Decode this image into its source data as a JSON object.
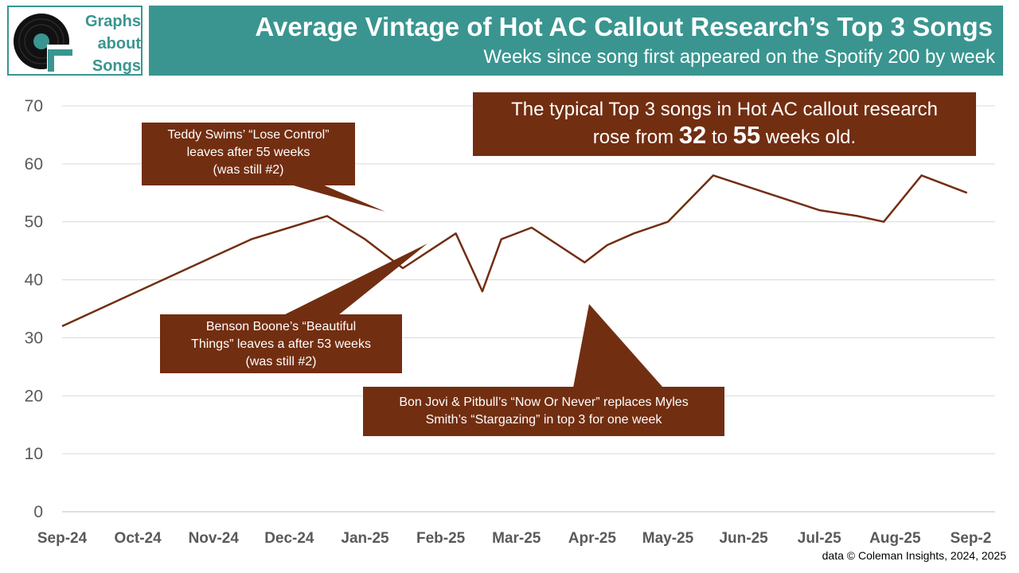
{
  "logo": {
    "lines": [
      "Graphs",
      "about",
      "Songs"
    ]
  },
  "header": {
    "title": "Average Vintage of Hot AC Callout Research’s Top 3 Songs",
    "subtitle": "Weeks since song first appeared on the Spotify 200 by week"
  },
  "annotations": {
    "teddy": [
      "Teddy Swims’ “Lose Control”",
      "leaves after 55 weeks",
      "(was still #2)"
    ],
    "benson": [
      "Benson Boone’s “Beautiful",
      "Things”  leaves a after 53 weeks",
      "(was still #2)"
    ],
    "bonjovi": [
      "Bon Jovi & Pitbull’s “Now Or Never” replaces  Myles",
      "Smith’s “Stargazing” in top 3 for one week"
    ],
    "main": {
      "line1": "The typical Top 3 songs in Hot AC callout research",
      "pre": "rose from ",
      "from": "32",
      "mid": " to ",
      "to": "55",
      "post": " weeks old."
    }
  },
  "source": "data © Coleman Insights, 2024, 2025",
  "colors": {
    "line": "#722e11",
    "accent": "#3a9590",
    "grid": "#d9d9d9",
    "axis_text": "#595959"
  },
  "chart_data": {
    "type": "line",
    "title": "Average Vintage of Hot AC Callout Research’s Top 3 Songs",
    "xlabel": "",
    "ylabel": "",
    "ylim": [
      0,
      70
    ],
    "yticks": [
      0,
      10,
      20,
      30,
      40,
      50,
      60,
      70
    ],
    "categories": [
      "Sep-24",
      "Oct-24",
      "Nov-24",
      "Dec-24",
      "Jan-25",
      "Feb-25",
      "Mar-25",
      "Apr-25",
      "May-25",
      "Jun-25",
      "Jul-25",
      "Aug-25",
      "Sep-2"
    ],
    "grid": true,
    "legend": "none",
    "series": [
      {
        "x": [
          0,
          0.5,
          1,
          1.5,
          2,
          2.5,
          3,
          3.5,
          4,
          4.5,
          4.85,
          5.2,
          5.55,
          5.8,
          6.2,
          6.9,
          7.2,
          7.55,
          8,
          8.6,
          9.3,
          10,
          10.5,
          10.85,
          11.35,
          11.95
        ],
        "y": [
          32,
          35,
          38,
          41,
          44,
          47,
          49,
          51,
          47,
          42,
          45,
          48,
          38,
          47,
          49,
          43,
          46,
          48,
          50,
          58,
          55,
          52,
          51,
          50,
          58,
          55
        ]
      }
    ]
  }
}
